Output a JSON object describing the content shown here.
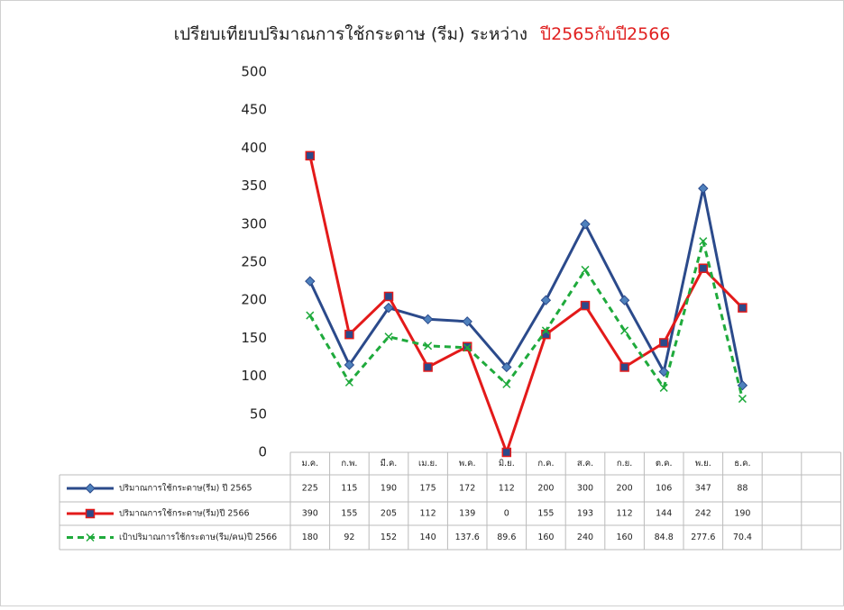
{
  "chart_data": {
    "type": "line",
    "title": "เปรียบเทียบปริมาณการใช้กระดาษ  (รีม)  ระหว่าง",
    "title_highlight": "ปี2565กับปี2566",
    "title_highlight_color": "#e02020",
    "categories": [
      "ม.ค.",
      "ก.พ.",
      "มี.ค.",
      "เม.ย.",
      "พ.ค.",
      "มิ.ย.",
      "ก.ค.",
      "ส.ค.",
      "ก.ย.",
      "ต.ค.",
      "พ.ย.",
      "ธ.ค."
    ],
    "series": [
      {
        "name": "ปริมาณการใช้กระดาษ(รีม)  ปี  2565",
        "color": "#2b4a8b",
        "marker": "diamond",
        "marker_color": "#4f81bd",
        "line_style": "solid",
        "values": [
          225,
          115,
          190,
          175,
          172,
          112,
          200,
          300,
          200,
          106,
          347,
          88
        ]
      },
      {
        "name": "ปริมาณการใช้กระดาษ(รีม)ปี  2566",
        "color": "#e31a1a",
        "marker": "square",
        "marker_color": "#2b4a8b",
        "line_style": "solid",
        "values": [
          390,
          155,
          205,
          112,
          139,
          0,
          155,
          193,
          112,
          144,
          242,
          190
        ]
      },
      {
        "name": "เป้าปริมาณการใช้กระดาษ(รีม/คน)ปี  2566",
        "color": "#1faa3c",
        "marker": "x",
        "marker_color": "#1faa3c",
        "line_style": "dashed",
        "values": [
          180,
          92,
          152,
          140,
          137.6,
          89.6,
          160,
          240,
          160,
          84.8,
          277.6,
          70.4
        ]
      }
    ],
    "ylim": [
      0,
      500
    ],
    "yticks": [
      0,
      50,
      100,
      150,
      200,
      250,
      300,
      350,
      400,
      450,
      500
    ],
    "grid": false
  }
}
